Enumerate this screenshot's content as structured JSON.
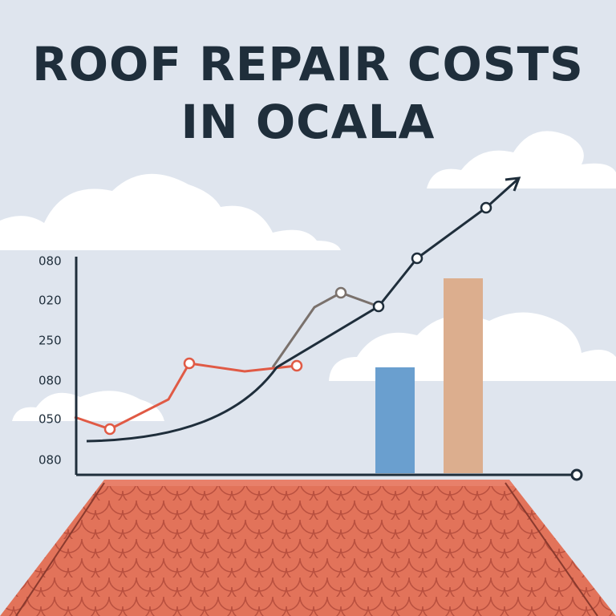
{
  "title": {
    "lines": [
      "ROOF REPAIR COSTS",
      "IN OCALA"
    ]
  },
  "chart": {
    "y_axis_labels": [
      "080",
      "020",
      "250",
      "080",
      "050",
      "080"
    ]
  }
}
